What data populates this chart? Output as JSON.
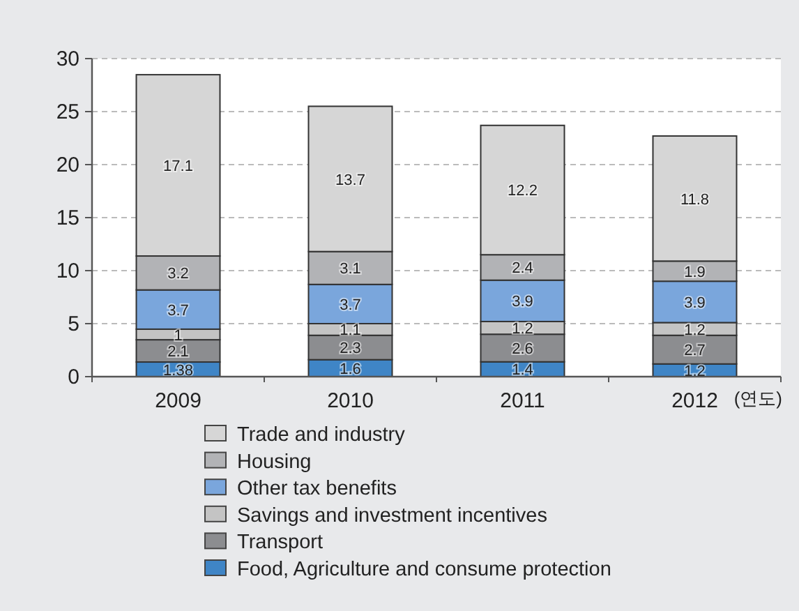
{
  "chart_data": {
    "type": "bar",
    "stacked": true,
    "categories": [
      "2009",
      "2010",
      "2011",
      "2012"
    ],
    "xlabel": "(연도)",
    "series": [
      {
        "name": "Food, Agriculture and consume protection",
        "color": "#3f85c6",
        "values": [
          1.38,
          1.6,
          1.4,
          1.2
        ]
      },
      {
        "name": "Transport",
        "color": "#8c8d90",
        "values": [
          2.1,
          2.3,
          2.6,
          2.7
        ]
      },
      {
        "name": "Savings and investment incentives",
        "color": "#c4c4c4",
        "values": [
          1,
          1.1,
          1.2,
          1.2
        ]
      },
      {
        "name": "Other tax benefits",
        "color": "#7aa6dc",
        "values": [
          3.7,
          3.7,
          3.9,
          3.9
        ]
      },
      {
        "name": "Housing",
        "color": "#b2b3b6",
        "values": [
          3.2,
          3.1,
          2.4,
          1.9
        ]
      },
      {
        "name": "Trade and industry",
        "color": "#d6d6d6",
        "values": [
          17.1,
          13.7,
          12.2,
          11.8
        ]
      }
    ],
    "ylim": [
      0,
      30
    ],
    "yticks": [
      0,
      5,
      10,
      15,
      20,
      25,
      30
    ],
    "grid": "y",
    "legend": "bottom",
    "data_labels": true
  }
}
